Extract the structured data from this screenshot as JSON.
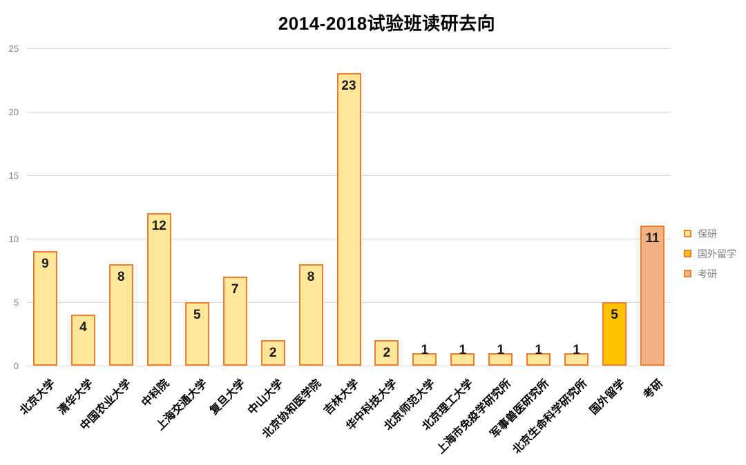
{
  "chart_data": {
    "type": "bar",
    "title": "2014-2018试验班读研去向",
    "xlabel": "",
    "ylabel": "",
    "categories": [
      "北京大学",
      "清华大学",
      "中国农业大学",
      "中科院",
      "上海交通大学",
      "复旦大学",
      "中山大学",
      "北京协和医学院",
      "吉林大学",
      "华中科技大学",
      "北京师范大学",
      "北京理工大学",
      "上海市免疫学研究所",
      "军事兽医研究所",
      "北京生命科学研究所",
      "国外留学",
      "考研"
    ],
    "values": [
      9,
      4,
      8,
      12,
      5,
      7,
      2,
      8,
      23,
      2,
      1,
      1,
      1,
      1,
      1,
      5,
      11
    ],
    "series_per_bar": [
      "保研",
      "保研",
      "保研",
      "保研",
      "保研",
      "保研",
      "保研",
      "保研",
      "保研",
      "保研",
      "保研",
      "保研",
      "保研",
      "保研",
      "保研",
      "国外留学",
      "考研"
    ],
    "legend": [
      {
        "label": "保研",
        "fill": "#FFE699",
        "stroke": "#ED7D31"
      },
      {
        "label": "国外留学",
        "fill": "#FFC000",
        "stroke": "#ED7D31"
      },
      {
        "label": "考研",
        "fill": "#F4B183",
        "stroke": "#ED7D31"
      }
    ],
    "ylim": [
      0,
      25
    ],
    "yticks": [
      0,
      5,
      10,
      15,
      20,
      25
    ],
    "grid": true,
    "data_labels": true,
    "legend_position": "right-middle",
    "colors": {
      "gridline": "#D9D9D9",
      "axis_tick_text": "#808080",
      "legend_text": "#7F7F7F",
      "category_text": "#000000",
      "value_label_text": "#1A1A1A",
      "background": "#FFFFFF"
    }
  }
}
